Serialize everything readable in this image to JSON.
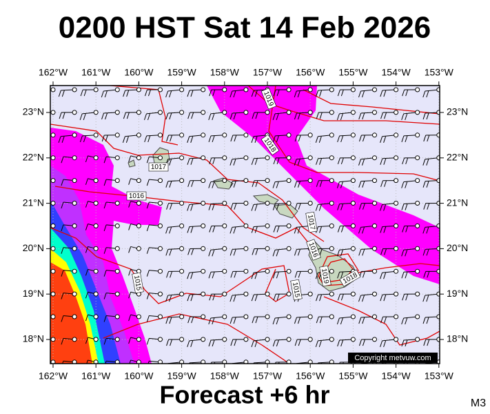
{
  "title": "0200 HST Sat 14 Feb 2026",
  "footer": "Forecast +6 hr",
  "model": "M3",
  "credit": "Copyright metvuw.com",
  "lon_labels": [
    "162°W",
    "161°W",
    "160°W",
    "159°W",
    "158°W",
    "157°W",
    "156°W",
    "155°W",
    "154°W",
    "153°W"
  ],
  "lat_labels": [
    "23°N",
    "22°N",
    "21°N",
    "20°N",
    "19°N",
    "18°N"
  ],
  "isobar_labels": [
    "1019",
    "1018",
    "1017",
    "1016",
    "1017",
    "1016",
    "1015",
    "1015",
    "1019",
    "1018"
  ]
}
